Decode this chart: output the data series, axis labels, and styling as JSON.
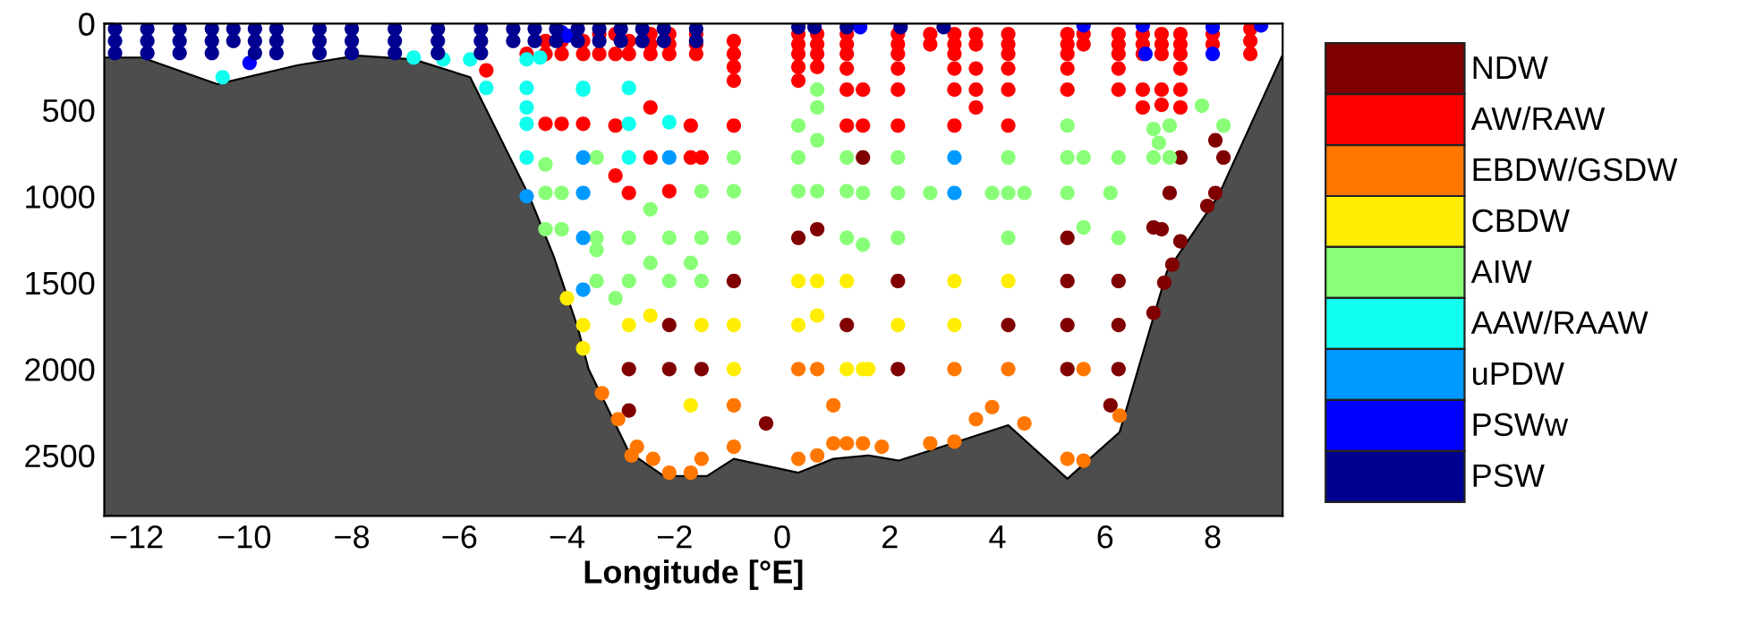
{
  "chart_data": {
    "type": "scatter",
    "xlabel": "Longitude [°E]",
    "xlim": [
      -12.6,
      9.3
    ],
    "ylim": [
      2850,
      0
    ],
    "xticks": [
      {
        "value": -12,
        "label": "−12"
      },
      {
        "value": -10,
        "label": "−10"
      },
      {
        "value": -8,
        "label": "−8"
      },
      {
        "value": -6,
        "label": "−6"
      },
      {
        "value": -4,
        "label": "−4"
      },
      {
        "value": -2,
        "label": "−2"
      },
      0,
      2,
      4,
      6,
      8
    ],
    "yticks": [
      0,
      500,
      1000,
      1500,
      2000,
      2500
    ],
    "grid": false,
    "legend": "right",
    "marker": "circle",
    "series": [
      {
        "type": "line",
        "marker": "none",
        "color": "#000000",
        "x": [
          -12.6,
          -11.9,
          -10.5,
          -9.0,
          -7.9,
          -6.85,
          -5.8,
          -4.7,
          -4.25,
          -3.8,
          -3.6,
          -2.85,
          -2.2,
          -1.4,
          -0.9,
          0.3,
          0.95,
          1.6,
          2.17,
          4.2,
          5.3,
          6.27,
          7.15,
          8.1,
          9.3
        ],
        "values": [
          196,
          196,
          350,
          240,
          185,
          207,
          310,
          1000,
          1345,
          1760,
          2000,
          2480,
          2620,
          2620,
          2520,
          2600,
          2520,
          2500,
          2530,
          2325,
          2635,
          2365,
          1435,
          1000,
          180
        ],
        "lower": [
          196,
          196,
          350,
          240,
          185,
          207,
          310,
          1000,
          1345,
          1760,
          2000,
          2480,
          2620,
          2620,
          2520,
          2600,
          2520,
          2500,
          2530,
          2325,
          2635,
          2365,
          1435,
          1000,
          180
        ],
        "upper": [
          2850,
          2850,
          2850,
          2850,
          2850,
          2850,
          2850,
          2850,
          2850,
          2850,
          2850,
          2850,
          2850,
          2850,
          2850,
          2850,
          2850,
          2850,
          2850,
          2850,
          2850,
          2850,
          2850,
          2850,
          2850
        ]
      },
      {
        "name": "NDW",
        "color": "#800000",
        "x": [
          -2.85,
          -2.85,
          -2.1,
          -2.1,
          -1.5,
          -0.9,
          -0.3,
          0.3,
          0.65,
          1.2,
          2.15,
          2.15,
          4.2,
          5.3,
          5.3,
          5.3,
          5.3,
          6.25,
          6.25,
          6.25,
          6.1,
          6.9,
          7.05,
          7.4,
          7.25,
          7.1,
          6.9,
          7.2,
          7.9,
          8.05,
          7.4,
          8.05,
          8.2,
          1.5
        ],
        "values": [
          2000,
          2240,
          1745,
          2000,
          2000,
          1490,
          2315,
          1240,
          1190,
          1745,
          1490,
          2000,
          1745,
          1240,
          1490,
          1745,
          2000,
          1490,
          1745,
          2000,
          2210,
          1180,
          1190,
          1260,
          1395,
          1500,
          1675,
          980,
          1055,
          980,
          775,
          675,
          775,
          775
        ]
      },
      {
        "name": "AW/RAW",
        "color": "#ff0000",
        "x": [
          -5.5,
          -4.75,
          -4.4,
          -4.4,
          -4.4,
          -4.1,
          -4.1,
          -4.1,
          -3.7,
          -3.7,
          -3.7,
          -3.4,
          -3.4,
          -3.1,
          -3.1,
          -3.1,
          -3.1,
          -2.85,
          -2.85,
          -2.85,
          -2.45,
          -2.45,
          -2.45,
          -2.45,
          -2.45,
          -2.1,
          -2.1,
          -2.1,
          -2.1,
          -1.6,
          -1.6,
          -1.6,
          -1.7,
          -1.7,
          -1.5,
          -0.9,
          -0.9,
          -0.9,
          -0.9,
          -0.9,
          0.3,
          0.3,
          0.3,
          0.3,
          0.3,
          0.65,
          0.65,
          0.65,
          0.65,
          1.2,
          1.2,
          1.2,
          1.2,
          1.2,
          1.2,
          1.5,
          1.5,
          2.15,
          2.15,
          2.15,
          2.15,
          2.15,
          2.15,
          2.75,
          2.75,
          3.2,
          3.2,
          3.2,
          3.2,
          3.2,
          3.2,
          3.6,
          3.6,
          3.6,
          3.6,
          3.6,
          4.2,
          4.2,
          4.2,
          4.2,
          4.2,
          4.2,
          5.3,
          5.3,
          5.3,
          5.3,
          5.3,
          5.6,
          5.6,
          6.25,
          6.25,
          6.25,
          6.25,
          6.25,
          6.7,
          6.7,
          6.7,
          6.7,
          6.7,
          7.05,
          7.05,
          7.05,
          7.05,
          7.05,
          7.4,
          7.4,
          7.4,
          7.4,
          7.4,
          7.4,
          8.0,
          8.0,
          8.7,
          8.7,
          8.7
        ],
        "values": [
          270,
          175,
          100,
          175,
          580,
          100,
          175,
          580,
          100,
          175,
          580,
          60,
          175,
          60,
          175,
          590,
          880,
          100,
          175,
          980,
          60,
          120,
          175,
          485,
          775,
          60,
          120,
          175,
          970,
          60,
          120,
          175,
          590,
          775,
          775,
          100,
          175,
          250,
          330,
          590,
          60,
          120,
          175,
          250,
          330,
          60,
          120,
          175,
          250,
          60,
          120,
          175,
          260,
          382,
          590,
          382,
          590,
          60,
          120,
          175,
          260,
          382,
          590,
          60,
          120,
          60,
          120,
          175,
          260,
          382,
          590,
          60,
          120,
          260,
          382,
          485,
          60,
          120,
          175,
          260,
          382,
          590,
          60,
          120,
          175,
          260,
          382,
          60,
          120,
          60,
          120,
          175,
          260,
          382,
          60,
          120,
          175,
          382,
          485,
          60,
          120,
          175,
          382,
          470,
          60,
          120,
          175,
          260,
          382,
          485,
          60,
          120,
          30,
          100,
          175
        ]
      },
      {
        "name": "EBDW/GSDW",
        "color": "#ff7700",
        "x": [
          -3.35,
          -3.05,
          -2.7,
          -2.4,
          -2.8,
          -2.1,
          -1.5,
          -1.7,
          -0.9,
          -0.9,
          0.3,
          0.65,
          0.3,
          0.65,
          0.95,
          0.95,
          1.2,
          1.5,
          1.85,
          2.75,
          3.2,
          3.2,
          3.6,
          3.9,
          4.2,
          4.5,
          5.6,
          5.3,
          5.6,
          6.27
        ],
        "values": [
          2140,
          2290,
          2450,
          2520,
          2500,
          2600,
          2520,
          2600,
          2210,
          2450,
          2000,
          2000,
          2520,
          2500,
          2210,
          2430,
          2430,
          2430,
          2450,
          2430,
          2000,
          2420,
          2290,
          2220,
          2000,
          2315,
          2000,
          2520,
          2530,
          2270
        ]
      },
      {
        "name": "CBDW",
        "color": "#ffee00",
        "x": [
          -4.0,
          -3.7,
          -3.7,
          -2.85,
          -2.45,
          -1.5,
          -0.9,
          -0.9,
          -1.7,
          0.3,
          0.65,
          0.3,
          0.65,
          1.2,
          1.2,
          1.6,
          1.5,
          2.15,
          3.2,
          3.2,
          4.2
        ],
        "values": [
          1590,
          1745,
          1880,
          1745,
          1690,
          1745,
          1745,
          2000,
          2210,
          1490,
          1490,
          1745,
          1690,
          1490,
          2000,
          2000,
          2000,
          1745,
          1490,
          1745,
          1490
        ]
      },
      {
        "name": "AIW",
        "color": "#88ff77",
        "x": [
          -4.4,
          -4.4,
          -4.1,
          -4.4,
          -4.1,
          -3.45,
          -3.45,
          -3.45,
          -3.1,
          -3.45,
          -2.85,
          -2.85,
          -2.45,
          -2.45,
          -2.1,
          -2.1,
          -1.7,
          -1.5,
          -1.5,
          -1.5,
          -0.9,
          -0.9,
          -0.9,
          0.3,
          0.3,
          0.3,
          0.65,
          0.65,
          0.65,
          0.65,
          1.2,
          1.2,
          1.2,
          1.5,
          1.5,
          2.15,
          2.15,
          2.15,
          2.75,
          3.9,
          4.2,
          4.5,
          4.2,
          4.2,
          5.3,
          5.3,
          5.6,
          5.3,
          6.1,
          5.6,
          6.25,
          6.25,
          6.9,
          6.9,
          7.2,
          7.0,
          7.2,
          7.8,
          8.2
        ],
        "values": [
          815,
          980,
          980,
          1190,
          1190,
          775,
          1240,
          1310,
          1590,
          1490,
          1240,
          1490,
          1075,
          1385,
          1240,
          1490,
          1385,
          970,
          1240,
          1490,
          775,
          970,
          1240,
          590,
          775,
          970,
          970,
          675,
          382,
          485,
          970,
          1240,
          775,
          980,
          1280,
          775,
          980,
          1240,
          980,
          980,
          980,
          980,
          775,
          1240,
          590,
          775,
          775,
          980,
          980,
          1180,
          1240,
          775,
          775,
          610,
          590,
          690,
          775,
          475,
          590
        ]
      },
      {
        "name": "AAW/RAAW",
        "color": "#11ffee",
        "x": [
          -10.4,
          -6.85,
          -6.3,
          -5.8,
          -5.5,
          -4.75,
          -4.75,
          -4.75,
          -4.75,
          -4.75,
          -3.7,
          -2.85,
          -2.85,
          -2.85,
          -3.7,
          -2.1,
          -4.5
        ],
        "values": [
          310,
          196,
          207,
          207,
          372,
          207,
          372,
          485,
          580,
          775,
          372,
          372,
          580,
          775,
          382,
          570,
          196
        ]
      },
      {
        "name": "uPDW",
        "color": "#0099ff",
        "x": [
          -3.7,
          -3.7,
          -4.75,
          -3.7,
          -3.7,
          -2.1,
          3.2,
          3.2
        ],
        "values": [
          775,
          980,
          1000,
          1240,
          1540,
          775,
          775,
          980
        ]
      },
      {
        "name": "PSWw",
        "color": "#0000ff",
        "x": [
          -9.9,
          -4.0,
          -4.1,
          1.45,
          5.6,
          6.7,
          6.75,
          8.0,
          8.0,
          8.9
        ],
        "values": [
          227,
          70,
          50,
          20,
          10,
          10,
          175,
          20,
          175,
          10
        ]
      },
      {
        "name": "PSW",
        "color": "#000090",
        "x": [
          -12.4,
          -11.8,
          -11.2,
          -10.6,
          -10.2,
          -9.8,
          -9.4,
          -8.6,
          -8.0,
          -7.2,
          -6.4,
          -5.6,
          -5.0,
          -4.6,
          -4.2,
          -3.8,
          -3.4,
          -3.0,
          -2.6,
          -2.2,
          -1.6,
          -12.4,
          -11.8,
          -11.2,
          -10.6,
          -10.2,
          -9.8,
          -9.4,
          -8.6,
          -8.0,
          -7.2,
          -6.4,
          -5.6,
          -5.0,
          -4.6,
          -4.2,
          -3.8,
          -3.4,
          -3.0,
          -2.6,
          -2.2,
          -1.6,
          -12.4,
          -11.8,
          -11.2,
          -10.6,
          -9.8,
          -9.4,
          -8.6,
          -8.0,
          -7.2,
          -6.4,
          -5.6,
          0.3,
          0.6,
          1.2,
          2.2,
          3.0
        ],
        "values": [
          30,
          30,
          30,
          30,
          30,
          30,
          30,
          30,
          30,
          30,
          30,
          30,
          30,
          30,
          30,
          30,
          30,
          30,
          30,
          30,
          30,
          100,
          100,
          100,
          100,
          100,
          100,
          100,
          100,
          100,
          100,
          100,
          100,
          100,
          100,
          100,
          100,
          100,
          100,
          100,
          100,
          100,
          170,
          170,
          170,
          170,
          170,
          170,
          170,
          170,
          170,
          170,
          170,
          20,
          20,
          20,
          20,
          20
        ]
      }
    ]
  }
}
